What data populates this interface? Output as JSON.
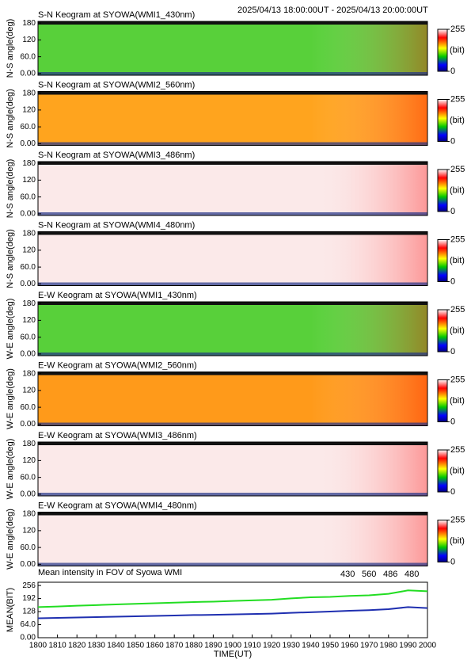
{
  "header": "2025/04/13 18:00:00UT - 2025/04/13 20:00:00UT",
  "chart_data": [
    {
      "type": "keogram",
      "title": "S-N Keogram at SYOWA(WMI1_430nm)",
      "ylabel": "N-S angle(deg)",
      "color": "#58d03a",
      "ylim": [
        -6,
        186
      ],
      "yticks": [
        {
          "value": 0,
          "label": "0.00"
        },
        {
          "value": 60,
          "label": "60.0"
        },
        120,
        180
      ],
      "colorbar_lim": [
        0,
        255
      ],
      "colorbar_ticks": [
        0,
        255
      ],
      "colorbar_label": "(bit)"
    },
    {
      "type": "keogram",
      "title": "S-N Keogram at SYOWA(WMI2_560nm)",
      "ylabel": "N-S angle(deg)",
      "color": "#ffa41e",
      "ylim": [
        -6,
        186
      ],
      "yticks": [
        {
          "value": 0,
          "label": "0.00"
        },
        {
          "value": 60,
          "label": "60.0"
        },
        120,
        180
      ],
      "colorbar_lim": [
        0,
        255
      ],
      "colorbar_ticks": [
        0,
        255
      ],
      "colorbar_label": "(bit)"
    },
    {
      "type": "keogram",
      "title": "S-N Keogram at SYOWA(WMI3_486nm)",
      "ylabel": "N-S angle(deg)",
      "color": "#fbe9e9",
      "ylim": [
        -6,
        186
      ],
      "yticks": [
        {
          "value": 0,
          "label": "0.00"
        },
        {
          "value": 60,
          "label": "60.0"
        },
        120,
        180
      ],
      "colorbar_lim": [
        0,
        255
      ],
      "colorbar_ticks": [
        0,
        255
      ],
      "colorbar_label": "(bit)"
    },
    {
      "type": "keogram",
      "title": "S-N Keogram at SYOWA(WMI4_480nm)",
      "ylabel": "N-S angle(deg)",
      "color": "#fbe9e9",
      "ylim": [
        -6,
        186
      ],
      "yticks": [
        {
          "value": 0,
          "label": "0.00"
        },
        {
          "value": 60,
          "label": "60.0"
        },
        120,
        180
      ],
      "colorbar_lim": [
        0,
        255
      ],
      "colorbar_ticks": [
        0,
        255
      ],
      "colorbar_label": "(bit)"
    },
    {
      "type": "keogram",
      "title": "E-W Keogram at SYOWA(WMI1_430nm)",
      "ylabel": "W-E angle(deg)",
      "color": "#58d03a",
      "ylim": [
        -6,
        186
      ],
      "yticks": [
        {
          "value": 0,
          "label": "0.00"
        },
        {
          "value": 60,
          "label": "60.0"
        },
        120,
        180
      ],
      "colorbar_lim": [
        0,
        255
      ],
      "colorbar_ticks": [
        0,
        255
      ],
      "colorbar_label": "(bit)"
    },
    {
      "type": "keogram",
      "title": "E-W Keogram at SYOWA(WMI2_560nm)",
      "ylabel": "W-E angle(deg)",
      "color": "#ff9a1a",
      "ylim": [
        -6,
        186
      ],
      "yticks": [
        {
          "value": 0,
          "label": "0.00"
        },
        {
          "value": 60,
          "label": "60.0"
        },
        120,
        180
      ],
      "colorbar_lim": [
        0,
        255
      ],
      "colorbar_ticks": [
        0,
        255
      ],
      "colorbar_label": "(bit)"
    },
    {
      "type": "keogram",
      "title": "E-W Keogram at SYOWA(WMI3_486nm)",
      "ylabel": "W-E angle(deg)",
      "color": "#fbe9e9",
      "ylim": [
        -6,
        186
      ],
      "yticks": [
        {
          "value": 0,
          "label": "0.00"
        },
        {
          "value": 60,
          "label": "60.0"
        },
        120,
        180
      ],
      "colorbar_lim": [
        0,
        255
      ],
      "colorbar_ticks": [
        0,
        255
      ],
      "colorbar_label": "(bit)"
    },
    {
      "type": "keogram",
      "title": "E-W Keogram at SYOWA(WMI4_480nm)",
      "ylabel": "W-E angle(deg)",
      "color": "#fbe9e9",
      "ylim": [
        -6,
        186
      ],
      "yticks": [
        {
          "value": 0,
          "label": "0.00"
        },
        {
          "value": 60,
          "label": "60.0"
        },
        120,
        180
      ],
      "colorbar_lim": [
        0,
        255
      ],
      "colorbar_ticks": [
        0,
        255
      ],
      "colorbar_label": "(bit)"
    },
    {
      "type": "line",
      "title": "Mean intensity in FOV of Syowa WMI",
      "xlabel": "TIME(UT)",
      "ylabel": "MEAN(BIT)",
      "x": [
        1800,
        1810,
        1820,
        1830,
        1840,
        1850,
        1860,
        1870,
        1880,
        1890,
        1900,
        1910,
        1920,
        1930,
        1940,
        1950,
        1960,
        1970,
        1980,
        1990,
        2000
      ],
      "xlim": [
        1800,
        2000
      ],
      "xticks": [
        1800,
        1810,
        1820,
        1830,
        1840,
        1850,
        1860,
        1870,
        1880,
        1890,
        1900,
        1910,
        1920,
        1930,
        1940,
        1950,
        1960,
        1970,
        1980,
        1990,
        2000
      ],
      "ylim": [
        0,
        272
      ],
      "yticks": [
        {
          "value": 0,
          "label": "0.00"
        },
        {
          "value": 64,
          "label": "64.0"
        },
        128,
        192,
        256
      ],
      "series": [
        {
          "name": "430",
          "color": "#1f2fb0",
          "values": [
            95,
            97,
            99,
            101,
            103,
            105,
            107,
            109,
            111,
            112,
            114,
            116,
            118,
            122,
            125,
            128,
            132,
            135,
            140,
            150,
            145
          ]
        },
        {
          "name": "560",
          "color": "#22dd22",
          "values": [
            150,
            153,
            157,
            160,
            163,
            166,
            169,
            172,
            175,
            177,
            180,
            183,
            186,
            193,
            198,
            200,
            205,
            208,
            215,
            232,
            228
          ]
        },
        {
          "name": "486",
          "color": "#cc2222",
          "values": [
            null,
            null,
            null,
            null,
            null,
            null,
            null,
            null,
            null,
            null,
            null,
            null,
            null,
            null,
            null,
            null,
            null,
            null,
            null,
            null,
            null
          ]
        },
        {
          "name": "480",
          "color": "#000000",
          "values": [
            null,
            null,
            null,
            null,
            null,
            null,
            null,
            null,
            null,
            null,
            null,
            null,
            null,
            null,
            null,
            null,
            null,
            null,
            null,
            null,
            null
          ]
        }
      ]
    }
  ]
}
